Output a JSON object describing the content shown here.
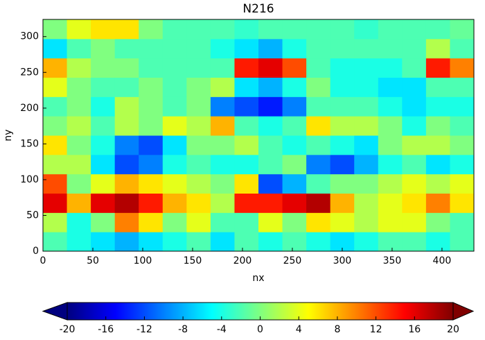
{
  "chart_data": {
    "type": "heatmap",
    "title": "N216",
    "xlabel": "nx",
    "ylabel": "ny",
    "colormap": "jet",
    "clim": [
      -20,
      20
    ],
    "xlim": [
      0,
      432
    ],
    "ylim": [
      0,
      324
    ],
    "xticks": [
      0,
      50,
      100,
      150,
      200,
      250,
      300,
      350,
      400
    ],
    "yticks": [
      0,
      50,
      100,
      150,
      200,
      250,
      300
    ],
    "colorbar_ticks": [
      -20,
      -16,
      -12,
      -8,
      -4,
      0,
      4,
      8,
      12,
      16,
      20
    ],
    "xbins": [
      0,
      24,
      48,
      72,
      96,
      120,
      144,
      168,
      192,
      216,
      240,
      264,
      288,
      312,
      336,
      360,
      384,
      408,
      432
    ],
    "ybins": [
      0,
      27,
      54,
      81,
      108,
      135,
      162,
      189,
      216,
      243,
      270,
      297,
      324
    ],
    "values": [
      [
        -2,
        -4,
        -6,
        -8,
        -6,
        -4,
        -2,
        -6,
        -2,
        -4,
        -2,
        -4,
        -6,
        -4,
        -2,
        -2,
        -4,
        -2
      ],
      [
        2,
        -4,
        0,
        10,
        6,
        0,
        4,
        -2,
        -2,
        4,
        0,
        6,
        4,
        2,
        4,
        4,
        0,
        -2
      ],
      [
        16,
        8,
        16,
        18,
        14,
        8,
        6,
        2,
        14,
        14,
        16,
        18,
        8,
        2,
        4,
        6,
        10,
        6
      ],
      [
        12,
        0,
        4,
        8,
        6,
        4,
        2,
        0,
        6,
        -12,
        -8,
        -2,
        0,
        0,
        2,
        4,
        2,
        4
      ],
      [
        2,
        2,
        -6,
        -12,
        -10,
        -4,
        -2,
        -4,
        -4,
        -2,
        0,
        -10,
        -12,
        -8,
        -4,
        -2,
        -6,
        -4
      ],
      [
        6,
        0,
        -4,
        -10,
        -12,
        -6,
        0,
        0,
        2,
        -2,
        -4,
        -2,
        -4,
        -6,
        0,
        2,
        2,
        0
      ],
      [
        0,
        2,
        -2,
        2,
        0,
        4,
        2,
        8,
        -2,
        -4,
        -2,
        6,
        2,
        2,
        0,
        -4,
        0,
        -2
      ],
      [
        -2,
        0,
        -4,
        2,
        0,
        -2,
        0,
        -10,
        -12,
        -14,
        -10,
        -2,
        -2,
        -2,
        -4,
        -6,
        -4,
        -4
      ],
      [
        4,
        0,
        -2,
        -2,
        0,
        -2,
        0,
        2,
        -6,
        -8,
        -4,
        0,
        -4,
        -4,
        -6,
        -6,
        -2,
        -2
      ],
      [
        8,
        2,
        0,
        0,
        -2,
        -2,
        -2,
        -2,
        14,
        16,
        12,
        -2,
        -4,
        -4,
        -4,
        -2,
        14,
        10
      ],
      [
        -6,
        -2,
        0,
        -2,
        -2,
        -2,
        -2,
        -4,
        -6,
        -8,
        -4,
        -2,
        -2,
        -2,
        -2,
        -2,
        2,
        -2
      ],
      [
        0,
        4,
        6,
        6,
        0,
        -2,
        -2,
        -2,
        -3,
        -2,
        -2,
        -2,
        -2,
        -3,
        -2,
        -2,
        -2,
        -1
      ]
    ]
  }
}
